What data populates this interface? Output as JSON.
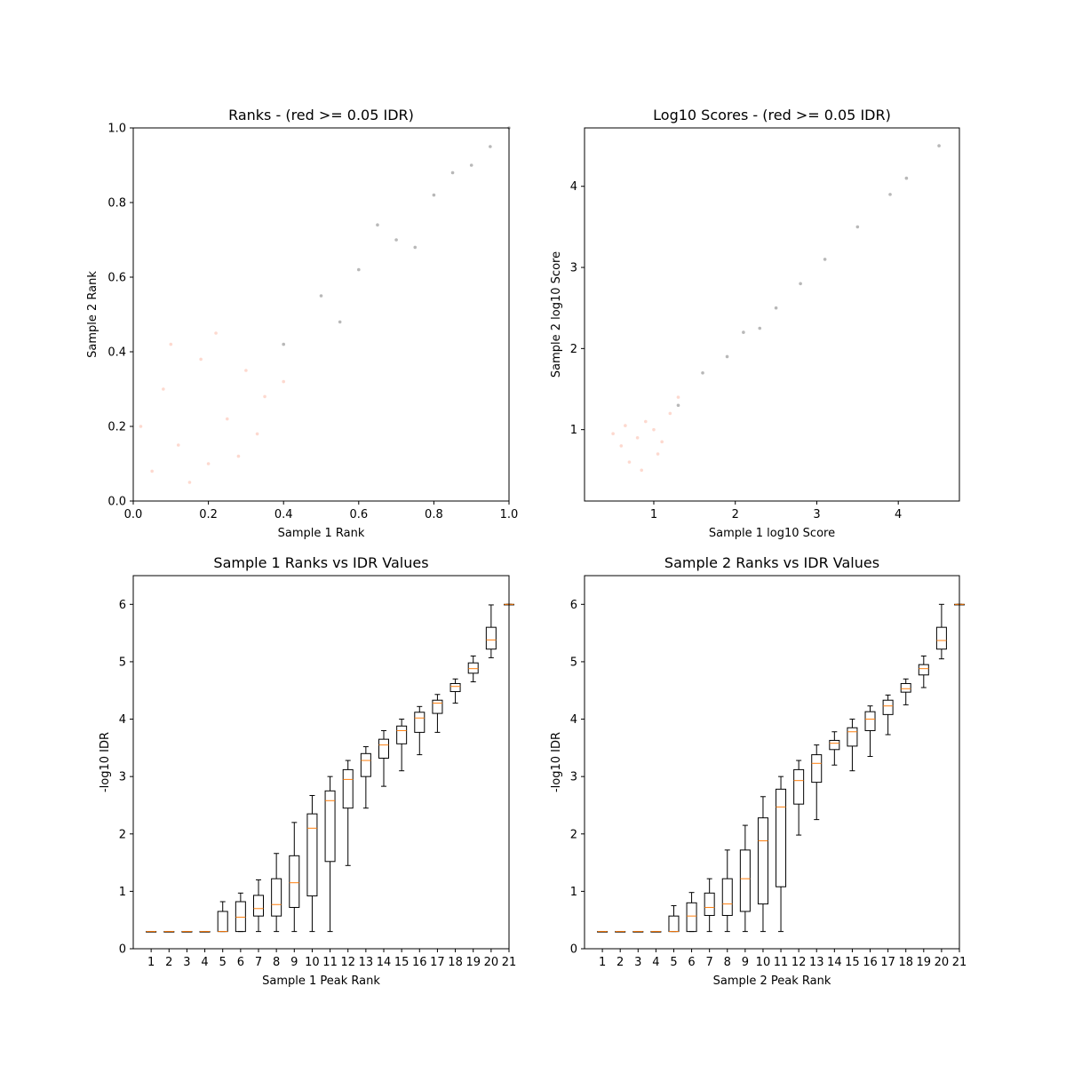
{
  "chart_data": [
    {
      "type": "scatter",
      "title": "Ranks - (red >= 0.05 IDR)",
      "xlabel": "Sample 1 Rank",
      "ylabel": "Sample 2 Rank",
      "xlim": [
        0.0,
        1.0
      ],
      "ylim": [
        0.0,
        1.0
      ],
      "xticks": [
        "0.0",
        "0.2",
        "0.4",
        "0.6",
        "0.8",
        "1.0"
      ],
      "yticks": [
        "0.0",
        "0.2",
        "0.4",
        "0.6",
        "0.8",
        "1.0"
      ],
      "legend": "none",
      "grid": false,
      "series": [
        {
          "color": "#fa8060",
          "points": [
            [
              0.05,
              0.08
            ],
            [
              0.12,
              0.15
            ],
            [
              0.2,
              0.1
            ],
            [
              0.08,
              0.3
            ],
            [
              0.25,
              0.22
            ],
            [
              0.3,
              0.35
            ],
            [
              0.15,
              0.05
            ],
            [
              0.35,
              0.28
            ],
            [
              0.02,
              0.2
            ],
            [
              0.28,
              0.12
            ],
            [
              0.18,
              0.38
            ],
            [
              0.4,
              0.32
            ],
            [
              0.1,
              0.42
            ],
            [
              0.33,
              0.18
            ],
            [
              0.22,
              0.45
            ]
          ]
        },
        {
          "color": "#333333",
          "points": [
            [
              0.4,
              0.42
            ],
            [
              0.5,
              0.55
            ],
            [
              0.6,
              0.62
            ],
            [
              0.7,
              0.7
            ],
            [
              0.8,
              0.82
            ],
            [
              0.9,
              0.9
            ],
            [
              0.55,
              0.48
            ],
            [
              0.65,
              0.74
            ],
            [
              0.75,
              0.68
            ],
            [
              0.85,
              0.88
            ],
            [
              0.95,
              0.95
            ],
            [
              1.0,
              1.0
            ]
          ]
        }
      ]
    },
    {
      "type": "scatter",
      "title": "Log10 Scores - (red >= 0.05 IDR)",
      "xlabel": "Sample 1 log10 Score",
      "ylabel": "Sample 2 log10 Score",
      "xlim": [
        0.15,
        4.75
      ],
      "ylim": [
        0.12,
        4.72
      ],
      "xticks": [
        "1",
        "2",
        "3",
        "4"
      ],
      "yticks": [
        "1",
        "2",
        "3",
        "4"
      ],
      "legend": "none",
      "grid": false,
      "series": [
        {
          "color": "#fa8060",
          "points": [
            [
              0.6,
              0.8
            ],
            [
              0.8,
              0.9
            ],
            [
              1.0,
              1.0
            ],
            [
              0.7,
              0.6
            ],
            [
              0.9,
              1.1
            ],
            [
              1.1,
              0.85
            ],
            [
              0.5,
              0.95
            ],
            [
              1.2,
              1.2
            ],
            [
              0.85,
              0.5
            ],
            [
              1.3,
              1.4
            ],
            [
              0.65,
              1.05
            ],
            [
              1.05,
              0.7
            ]
          ]
        },
        {
          "color": "#333333",
          "points": [
            [
              1.3,
              1.3
            ],
            [
              1.6,
              1.7
            ],
            [
              1.9,
              1.9
            ],
            [
              2.1,
              2.2
            ],
            [
              2.3,
              2.25
            ],
            [
              2.5,
              2.5
            ],
            [
              2.8,
              2.8
            ],
            [
              3.1,
              3.1
            ],
            [
              3.5,
              3.5
            ],
            [
              3.9,
              3.9
            ],
            [
              4.1,
              4.1
            ],
            [
              4.5,
              4.5
            ]
          ]
        }
      ]
    },
    {
      "type": "box",
      "title": "Sample 1 Ranks vs IDR Values",
      "xlabel": "Sample 1 Peak Rank",
      "ylabel": "-log10 IDR",
      "xlim": [
        0,
        21
      ],
      "ylim": [
        0,
        6.5
      ],
      "categories": [
        "1",
        "2",
        "3",
        "4",
        "5",
        "6",
        "7",
        "8",
        "9",
        "10",
        "11",
        "12",
        "13",
        "14",
        "15",
        "16",
        "17",
        "18",
        "19",
        "20",
        "21"
      ],
      "yticks": [
        "0",
        "1",
        "2",
        "3",
        "4",
        "5",
        "6"
      ],
      "grid": false,
      "boxes": [
        {
          "min": 0.3,
          "q1": 0.3,
          "median": 0.3,
          "q3": 0.3,
          "max": 0.3
        },
        {
          "min": 0.3,
          "q1": 0.3,
          "median": 0.3,
          "q3": 0.3,
          "max": 0.3
        },
        {
          "min": 0.3,
          "q1": 0.3,
          "median": 0.3,
          "q3": 0.3,
          "max": 0.3
        },
        {
          "min": 0.3,
          "q1": 0.3,
          "median": 0.3,
          "q3": 0.3,
          "max": 0.3
        },
        {
          "min": 0.3,
          "q1": 0.3,
          "median": 0.3,
          "q3": 0.65,
          "max": 0.82
        },
        {
          "min": 0.3,
          "q1": 0.3,
          "median": 0.55,
          "q3": 0.82,
          "max": 0.97
        },
        {
          "min": 0.3,
          "q1": 0.57,
          "median": 0.7,
          "q3": 0.93,
          "max": 1.2
        },
        {
          "min": 0.3,
          "q1": 0.57,
          "median": 0.77,
          "q3": 1.22,
          "max": 1.66
        },
        {
          "min": 0.3,
          "q1": 0.72,
          "median": 1.15,
          "q3": 1.62,
          "max": 2.2
        },
        {
          "min": 0.3,
          "q1": 0.92,
          "median": 2.1,
          "q3": 2.35,
          "max": 2.67
        },
        {
          "min": 0.3,
          "q1": 1.52,
          "median": 2.58,
          "q3": 2.75,
          "max": 3.0
        },
        {
          "min": 1.45,
          "q1": 2.45,
          "median": 2.95,
          "q3": 3.12,
          "max": 3.28
        },
        {
          "min": 2.45,
          "q1": 3.0,
          "median": 3.28,
          "q3": 3.4,
          "max": 3.52
        },
        {
          "min": 2.83,
          "q1": 3.32,
          "median": 3.55,
          "q3": 3.65,
          "max": 3.8
        },
        {
          "min": 3.1,
          "q1": 3.57,
          "median": 3.8,
          "q3": 3.88,
          "max": 4.0
        },
        {
          "min": 3.38,
          "q1": 3.77,
          "median": 4.02,
          "q3": 4.12,
          "max": 4.22
        },
        {
          "min": 3.77,
          "q1": 4.1,
          "median": 4.28,
          "q3": 4.33,
          "max": 4.43
        },
        {
          "min": 4.28,
          "q1": 4.48,
          "median": 4.57,
          "q3": 4.62,
          "max": 4.7
        },
        {
          "min": 4.65,
          "q1": 4.8,
          "median": 4.88,
          "q3": 4.98,
          "max": 5.1
        },
        {
          "min": 5.07,
          "q1": 5.22,
          "median": 5.38,
          "q3": 5.6,
          "max": 5.99
        },
        {
          "min": 6.0,
          "q1": 6.0,
          "median": 6.0,
          "q3": 6.0,
          "max": 6.0
        }
      ]
    },
    {
      "type": "box",
      "title": "Sample 2 Ranks vs IDR Values",
      "xlabel": "Sample 2 Peak Rank",
      "ylabel": "-log10 IDR",
      "xlim": [
        0,
        21
      ],
      "ylim": [
        0,
        6.5
      ],
      "categories": [
        "1",
        "2",
        "3",
        "4",
        "5",
        "6",
        "7",
        "8",
        "9",
        "10",
        "11",
        "12",
        "13",
        "14",
        "15",
        "16",
        "17",
        "18",
        "19",
        "20",
        "21"
      ],
      "yticks": [
        "0",
        "1",
        "2",
        "3",
        "4",
        "5",
        "6"
      ],
      "grid": false,
      "boxes": [
        {
          "min": 0.3,
          "q1": 0.3,
          "median": 0.3,
          "q3": 0.3,
          "max": 0.3
        },
        {
          "min": 0.3,
          "q1": 0.3,
          "median": 0.3,
          "q3": 0.3,
          "max": 0.3
        },
        {
          "min": 0.3,
          "q1": 0.3,
          "median": 0.3,
          "q3": 0.3,
          "max": 0.3
        },
        {
          "min": 0.3,
          "q1": 0.3,
          "median": 0.3,
          "q3": 0.3,
          "max": 0.3
        },
        {
          "min": 0.3,
          "q1": 0.3,
          "median": 0.3,
          "q3": 0.57,
          "max": 0.75
        },
        {
          "min": 0.3,
          "q1": 0.3,
          "median": 0.57,
          "q3": 0.8,
          "max": 0.98
        },
        {
          "min": 0.3,
          "q1": 0.58,
          "median": 0.72,
          "q3": 0.97,
          "max": 1.22
        },
        {
          "min": 0.3,
          "q1": 0.58,
          "median": 0.78,
          "q3": 1.22,
          "max": 1.72
        },
        {
          "min": 0.3,
          "q1": 0.65,
          "median": 1.22,
          "q3": 1.72,
          "max": 2.15
        },
        {
          "min": 0.3,
          "q1": 0.78,
          "median": 1.88,
          "q3": 2.28,
          "max": 2.65
        },
        {
          "min": 0.3,
          "q1": 1.08,
          "median": 2.47,
          "q3": 2.78,
          "max": 3.0
        },
        {
          "min": 1.98,
          "q1": 2.52,
          "median": 2.93,
          "q3": 3.12,
          "max": 3.28
        },
        {
          "min": 2.25,
          "q1": 2.9,
          "median": 3.23,
          "q3": 3.38,
          "max": 3.55
        },
        {
          "min": 3.2,
          "q1": 3.47,
          "median": 3.58,
          "q3": 3.63,
          "max": 3.78
        },
        {
          "min": 3.1,
          "q1": 3.53,
          "median": 3.78,
          "q3": 3.85,
          "max": 4.0
        },
        {
          "min": 3.35,
          "q1": 3.8,
          "median": 4.0,
          "q3": 4.13,
          "max": 4.23
        },
        {
          "min": 3.73,
          "q1": 4.08,
          "median": 4.23,
          "q3": 4.33,
          "max": 4.42
        },
        {
          "min": 4.25,
          "q1": 4.47,
          "median": 4.53,
          "q3": 4.62,
          "max": 4.7
        },
        {
          "min": 4.55,
          "q1": 4.77,
          "median": 4.88,
          "q3": 4.95,
          "max": 5.1
        },
        {
          "min": 5.05,
          "q1": 5.22,
          "median": 5.37,
          "q3": 5.6,
          "max": 6.0
        },
        {
          "min": 6.0,
          "q1": 6.0,
          "median": 6.0,
          "q3": 6.0,
          "max": 6.0
        }
      ]
    }
  ]
}
